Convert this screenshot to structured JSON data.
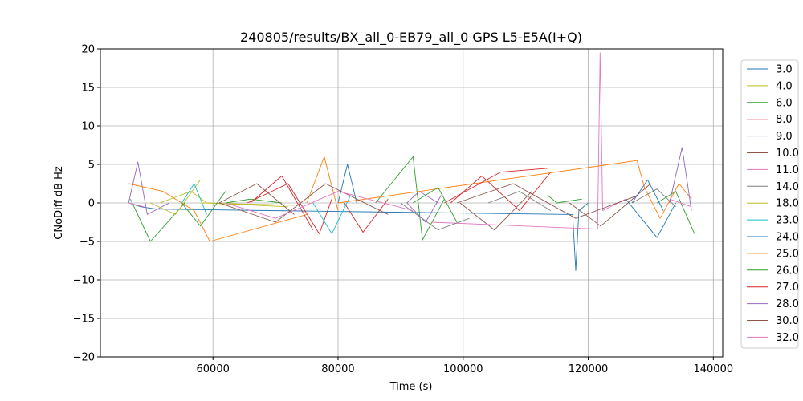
{
  "chart_data": {
    "type": "line",
    "title": "240805/results/BX_all_0-EB79_all_0 GPS L5-E5A(I+Q)",
    "xlabel": "Time (s)",
    "ylabel": "CNoDiff dB Hz",
    "xlim": [
      42000,
      141500
    ],
    "ylim": [
      -20,
      20
    ],
    "x_ticks": [
      60000,
      80000,
      100000,
      120000,
      140000
    ],
    "x_tick_labels": [
      "60000",
      "80000",
      "100000",
      "120000",
      "140000"
    ],
    "y_ticks": [
      -20,
      -15,
      -10,
      -5,
      0,
      5,
      10,
      15,
      20
    ],
    "y_tick_labels": [
      "−20",
      "−15",
      "−10",
      "−5",
      "0",
      "5",
      "10",
      "15",
      "20"
    ],
    "grid": true,
    "legend_position": "outside-right",
    "series": [
      {
        "name": "3.0",
        "color": "#1f77b4",
        "segments": [
          [
            [
              46500,
              0.0
            ],
            [
              48500,
              -0.5
            ],
            [
              51000,
              -0.8
            ]
          ],
          [
            [
              51000,
              -0.8
            ],
            [
              117500,
              -1.5
            ]
          ],
          [
            [
              117500,
              -1.5
            ],
            [
              118000,
              -8.8
            ],
            [
              118500,
              -1.0
            ],
            [
              120000,
              0.0
            ]
          ],
          [
            [
              126000,
              0.5
            ],
            [
              131000,
              -4.5
            ],
            [
              134000,
              0.0
            ]
          ]
        ]
      },
      {
        "name": "4.0",
        "color": "#bcbd22",
        "segments": [
          [
            [
              51500,
              0.0
            ],
            [
              56500,
              1.5
            ],
            [
              59000,
              0.0
            ]
          ],
          [
            [
              59000,
              0.0
            ],
            [
              72000,
              -0.5
            ]
          ]
        ]
      },
      {
        "name": "6.0",
        "color": "#2ca02c",
        "segments": [
          [
            [
              46800,
              0.5
            ],
            [
              50000,
              -5.0
            ],
            [
              55500,
              0.0
            ]
          ],
          [
            [
              62000,
              0.0
            ],
            [
              66000,
              0.5
            ],
            [
              71000,
              0.0
            ]
          ],
          [
            [
              86000,
              0.0
            ],
            [
              92000,
              6.0
            ],
            [
              93500,
              -4.8
            ],
            [
              97000,
              0.5
            ]
          ],
          [
            [
              113500,
              1.0
            ],
            [
              115000,
              0.0
            ],
            [
              119000,
              0.5
            ]
          ],
          [
            [
              131000,
              0.0
            ],
            [
              134000,
              1.5
            ],
            [
              137000,
              -4.0
            ]
          ]
        ]
      },
      {
        "name": "8.0",
        "color": "#d62728",
        "segments": [
          [
            [
              65500,
              0.0
            ],
            [
              72000,
              2.5
            ],
            [
              77000,
              -4.0
            ],
            [
              79000,
              0.5
            ]
          ],
          [
            [
              81000,
              0.0
            ],
            [
              84000,
              -3.8
            ],
            [
              88000,
              0.5
            ]
          ],
          [
            [
              98000,
              0.0
            ],
            [
              103000,
              3.5
            ],
            [
              109000,
              -1.0
            ],
            [
              114000,
              4.0
            ]
          ]
        ]
      },
      {
        "name": "9.0",
        "color": "#9467bd",
        "segments": [
          [
            [
              46500,
              0.0
            ],
            [
              48000,
              5.3
            ],
            [
              49500,
              -1.5
            ],
            [
              53000,
              0.0
            ]
          ],
          [
            [
              91000,
              0.0
            ],
            [
              93000,
              1.5
            ],
            [
              96000,
              0.0
            ]
          ]
        ]
      },
      {
        "name": "10.0",
        "color": "#8c564b",
        "segments": [
          [
            [
              61000,
              0.0
            ],
            [
              67000,
              2.5
            ],
            [
              73000,
              -1.5
            ]
          ],
          [
            [
              99500,
              0.0
            ],
            [
              105000,
              -3.5
            ],
            [
              111000,
              1.5
            ]
          ],
          [
            [
              117000,
              0.0
            ],
            [
              122000,
              -3.0
            ],
            [
              130000,
              2.5
            ]
          ]
        ]
      },
      {
        "name": "11.0",
        "color": "#e377c2",
        "segments": [
          [
            [
              46500,
              0.0
            ],
            [
              49000,
              -0.5
            ]
          ],
          [
            [
              95000,
              -2.5
            ],
            [
              121500,
              -3.4
            ]
          ],
          [
            [
              121500,
              -3.4
            ],
            [
              121900,
              19.5
            ],
            [
              122300,
              -1.0
            ],
            [
              126000,
              0.5
            ]
          ],
          [
            [
              133000,
              0.5
            ],
            [
              136500,
              -0.5
            ]
          ]
        ]
      },
      {
        "name": "14.0",
        "color": "#7f7f7f",
        "segments": [
          [
            [
              90000,
              0.0
            ],
            [
              96000,
              -3.5
            ],
            [
              101000,
              -2.0
            ]
          ],
          [
            [
              104000,
              0.0
            ],
            [
              109000,
              1.5
            ],
            [
              114000,
              -1.0
            ]
          ],
          [
            [
              127000,
              0.0
            ],
            [
              131000,
              1.8
            ],
            [
              134000,
              -0.5
            ]
          ]
        ]
      },
      {
        "name": "18.0",
        "color": "#bcbd22",
        "segments": [
          [
            [
              50000,
              0.0
            ],
            [
              54000,
              -1.5
            ],
            [
              58000,
              3.0
            ]
          ],
          [
            [
              58000,
              0.0
            ],
            [
              73000,
              -0.3
            ]
          ]
        ]
      },
      {
        "name": "23.0",
        "color": "#17becf",
        "segments": [
          [
            [
              55000,
              0.0
            ],
            [
              57000,
              2.5
            ],
            [
              59000,
              -1.5
            ]
          ],
          [
            [
              76000,
              0.0
            ],
            [
              79000,
              -4.0
            ],
            [
              82000,
              1.0
            ]
          ]
        ]
      },
      {
        "name": "24.0",
        "color": "#1f77b4",
        "segments": [
          [
            [
              80000,
              0.0
            ],
            [
              81500,
              5.0
            ],
            [
              83000,
              0.0
            ]
          ],
          [
            [
              127000,
              0.0
            ],
            [
              129500,
              3.0
            ],
            [
              132000,
              -1.0
            ]
          ]
        ]
      },
      {
        "name": "25.0",
        "color": "#ff7f0e",
        "segments": [
          [
            [
              46500,
              2.5
            ],
            [
              52000,
              1.5
            ],
            [
              57000,
              -1.0
            ],
            [
              59500,
              -5.0
            ]
          ],
          [
            [
              59500,
              -5.0
            ],
            [
              75000,
              -1.5
            ]
          ],
          [
            [
              75000,
              0.0
            ],
            [
              77800,
              6.0
            ],
            [
              80000,
              -1.0
            ]
          ],
          [
            [
              80000,
              0.0
            ],
            [
              127800,
              5.5
            ]
          ],
          [
            [
              127800,
              5.5
            ],
            [
              129000,
              2.0
            ],
            [
              131500,
              -2.0
            ],
            [
              134500,
              2.5
            ],
            [
              136500,
              0.5
            ]
          ]
        ]
      },
      {
        "name": "26.0",
        "color": "#2ca02c",
        "segments": [
          [
            [
              55000,
              0.0
            ],
            [
              58000,
              -3.0
            ],
            [
              62000,
              1.5
            ]
          ],
          [
            [
              92000,
              0.0
            ],
            [
              96000,
              2.0
            ],
            [
              99000,
              -2.5
            ]
          ]
        ]
      },
      {
        "name": "27.0",
        "color": "#d62728",
        "segments": [
          [
            [
              66000,
              0.0
            ],
            [
              71000,
              3.5
            ],
            [
              76000,
              -3.5
            ]
          ],
          [
            [
              97000,
              0.0
            ],
            [
              106000,
              4.0
            ],
            [
              113500,
              4.5
            ]
          ]
        ]
      },
      {
        "name": "28.0",
        "color": "#9467bd",
        "segments": [
          [
            [
              91000,
              0.0
            ],
            [
              94000,
              -2.5
            ],
            [
              96500,
              1.0
            ]
          ],
          [
            [
              133000,
              0.0
            ],
            [
              135000,
              7.2
            ],
            [
              136500,
              -1.0
            ]
          ]
        ]
      },
      {
        "name": "30.0",
        "color": "#8c564b",
        "segments": [
          [
            [
              61000,
              0.0
            ],
            [
              70000,
              -2.5
            ],
            [
              78000,
              2.5
            ],
            [
              88000,
              -1.5
            ]
          ],
          [
            [
              99000,
              0.0
            ],
            [
              108000,
              2.5
            ],
            [
              118000,
              -2.0
            ],
            [
              128000,
              1.0
            ]
          ]
        ]
      },
      {
        "name": "32.0",
        "color": "#e377c2",
        "segments": [
          [
            [
              62000,
              0.0
            ],
            [
              70000,
              -2.0
            ],
            [
              80000,
              1.5
            ],
            [
              92000,
              -1.0
            ]
          ]
        ]
      }
    ]
  }
}
